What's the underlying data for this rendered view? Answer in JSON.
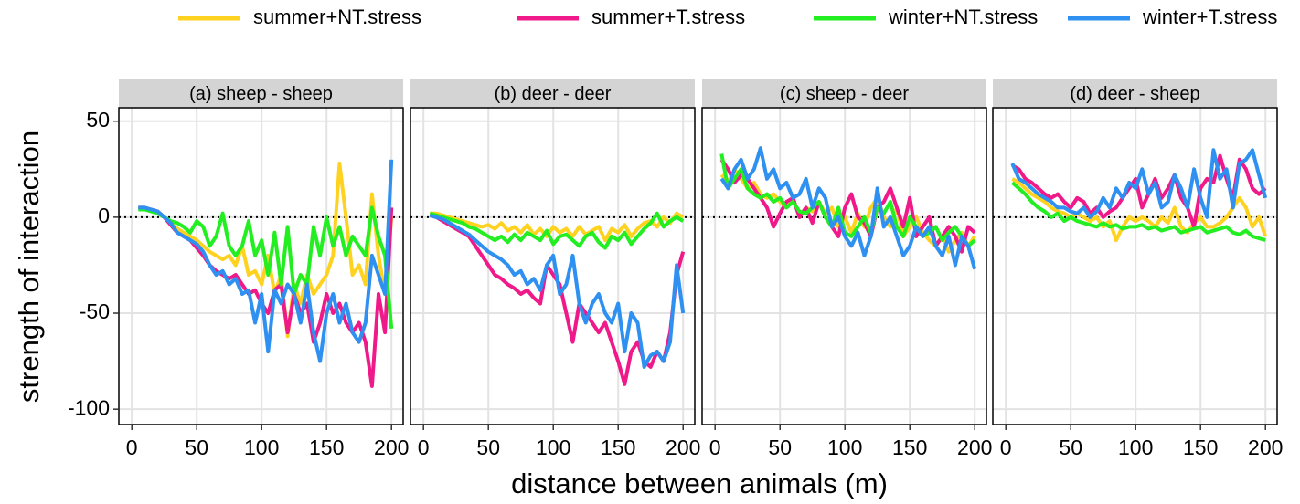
{
  "chart_data": {
    "type": "line",
    "xlabel": "distance between animals (m)",
    "ylabel": "strength of interaction",
    "xlim": [
      -10,
      209
    ],
    "xticks": [
      0,
      50,
      100,
      150,
      200
    ],
    "ylim": [
      -108,
      57
    ],
    "yticks": [
      50,
      0,
      -50,
      -100
    ],
    "grid": true,
    "hline": 0,
    "legend": "top",
    "x": [
      5,
      10,
      15,
      20,
      25,
      30,
      35,
      40,
      45,
      50,
      55,
      60,
      65,
      70,
      75,
      80,
      85,
      90,
      95,
      100,
      105,
      110,
      115,
      120,
      125,
      130,
      135,
      140,
      145,
      150,
      155,
      160,
      165,
      170,
      175,
      180,
      185,
      190,
      195,
      200
    ],
    "series": [
      {
        "name": "summer+NT.stress",
        "color": "#FFD21F"
      },
      {
        "name": "summer+T.stress",
        "color": "#F0198A"
      },
      {
        "name": "winter+NT.stress",
        "color": "#22EE22"
      },
      {
        "name": "winter+T.stress",
        "color": "#2E90F0"
      }
    ],
    "facets": [
      {
        "title": "(a) sheep - sheep",
        "series": [
          {
            "values": [
              5,
              4,
              4,
              2,
              0,
              -3,
              -6,
              -8,
              -10,
              -12,
              -15,
              -18,
              -20,
              -22,
              -20,
              -25,
              -15,
              -30,
              -28,
              -35,
              -20,
              -40,
              -30,
              -62,
              -35,
              -45,
              -30,
              -40,
              -35,
              -30,
              -20,
              28,
              0,
              -30,
              -25,
              -35,
              12,
              -20,
              -40,
              0
            ]
          },
          {
            "values": [
              5,
              5,
              4,
              3,
              0,
              -4,
              -8,
              -10,
              -12,
              -16,
              -20,
              -25,
              -28,
              -30,
              -32,
              -30,
              -35,
              -40,
              -38,
              -45,
              -50,
              -38,
              -35,
              -60,
              -40,
              -50,
              -45,
              -65,
              -55,
              -40,
              -50,
              -45,
              -55,
              -60,
              -55,
              -65,
              -88,
              -40,
              -60,
              5
            ]
          },
          {
            "values": [
              4,
              4,
              3,
              2,
              0,
              -2,
              -3,
              -5,
              -8,
              -2,
              -5,
              -15,
              -10,
              2,
              -15,
              -20,
              -15,
              -2,
              -20,
              -12,
              -30,
              -8,
              -35,
              -5,
              -40,
              -30,
              -35,
              -5,
              -20,
              0,
              -15,
              -5,
              -20,
              -10,
              -15,
              -20,
              5,
              -10,
              -20,
              -58
            ]
          },
          {
            "values": [
              5,
              5,
              4,
              3,
              0,
              -3,
              -8,
              -10,
              -12,
              -14,
              -18,
              -25,
              -30,
              -28,
              -35,
              -32,
              -40,
              -38,
              -55,
              -40,
              -70,
              -38,
              -45,
              -35,
              -40,
              -55,
              -35,
              -60,
              -75,
              -50,
              -40,
              -55,
              -45,
              -60,
              -65,
              -55,
              -20,
              -30,
              -40,
              30
            ]
          }
        ]
      },
      {
        "title": "(b) deer - deer",
        "series": [
          {
            "values": [
              2,
              2,
              1,
              0,
              -1,
              -2,
              -3,
              -4,
              -5,
              -4,
              -6,
              -3,
              -7,
              -5,
              -8,
              -4,
              -9,
              -6,
              -10,
              -5,
              -8,
              -6,
              -10,
              -5,
              -9,
              -7,
              -5,
              -12,
              -6,
              -8,
              -4,
              -10,
              -6,
              -3,
              -2,
              -5,
              0,
              -3,
              2,
              0
            ]
          },
          {
            "values": [
              1,
              0,
              -2,
              -4,
              -6,
              -8,
              -10,
              -15,
              -20,
              -25,
              -30,
              -32,
              -35,
              -37,
              -40,
              -38,
              -42,
              -45,
              -25,
              -30,
              -35,
              -50,
              -65,
              -45,
              -50,
              -55,
              -60,
              -55,
              -65,
              -75,
              -87,
              -70,
              -65,
              -75,
              -78,
              -70,
              -75,
              -60,
              -30,
              -18
            ]
          },
          {
            "values": [
              2,
              1,
              0,
              -1,
              -2,
              -3,
              -5,
              -6,
              -8,
              -10,
              -12,
              -10,
              -13,
              -9,
              -12,
              -8,
              -10,
              -12,
              -7,
              -14,
              -10,
              -9,
              -12,
              -15,
              -10,
              -8,
              -13,
              -16,
              -10,
              -12,
              -8,
              -14,
              -10,
              -6,
              -3,
              2,
              -5,
              -2,
              0,
              -2
            ]
          },
          {
            "values": [
              1,
              0,
              -1,
              -3,
              -5,
              -7,
              -9,
              -12,
              -15,
              -18,
              -20,
              -22,
              -25,
              -30,
              -28,
              -35,
              -32,
              -38,
              -25,
              -20,
              -40,
              -35,
              -20,
              -45,
              -55,
              -45,
              -40,
              -50,
              -55,
              -45,
              -70,
              -50,
              -55,
              -78,
              -72,
              -70,
              -75,
              -65,
              -25,
              -50
            ]
          }
        ]
      },
      {
        "title": "(c) sheep - deer",
        "series": [
          {
            "values": [
              22,
              18,
              25,
              20,
              15,
              18,
              12,
              10,
              12,
              8,
              5,
              10,
              0,
              5,
              3,
              8,
              2,
              5,
              -5,
              0,
              -8,
              2,
              -5,
              5,
              10,
              0,
              -5,
              5,
              -10,
              -5,
              0,
              -8,
              -12,
              -15,
              -10,
              -18,
              -12,
              -8,
              -15,
              -10
            ]
          },
          {
            "values": [
              30,
              25,
              18,
              22,
              20,
              15,
              10,
              5,
              -5,
              2,
              8,
              10,
              0,
              5,
              -3,
              8,
              0,
              -5,
              -10,
              5,
              12,
              0,
              -3,
              -10,
              5,
              8,
              15,
              5,
              -5,
              10,
              -10,
              -5,
              0,
              -15,
              -10,
              -5,
              -10,
              -18,
              -5,
              -8
            ]
          },
          {
            "values": [
              33,
              15,
              20,
              25,
              15,
              12,
              10,
              12,
              8,
              10,
              5,
              8,
              3,
              2,
              5,
              8,
              0,
              -5,
              5,
              -8,
              -10,
              -5,
              0,
              -8,
              5,
              2,
              8,
              -5,
              -10,
              0,
              -5,
              -10,
              -8,
              -5,
              -12,
              -8,
              -5,
              -10,
              -15,
              -12
            ]
          },
          {
            "values": [
              20,
              15,
              25,
              30,
              20,
              25,
              36,
              20,
              25,
              15,
              18,
              10,
              12,
              20,
              5,
              15,
              10,
              -5,
              0,
              -10,
              -15,
              -8,
              -20,
              -10,
              15,
              -5,
              0,
              -10,
              -20,
              -15,
              -5,
              -10,
              -5,
              -15,
              -20,
              -10,
              -25,
              -10,
              -15,
              -27
            ]
          }
        ]
      },
      {
        "title": "(d) deer - sheep",
        "series": [
          {
            "values": [
              20,
              18,
              15,
              12,
              10,
              8,
              5,
              3,
              2,
              0,
              2,
              0,
              -2,
              0,
              -5,
              -2,
              -12,
              -5,
              0,
              -2,
              0,
              -2,
              -5,
              0,
              -3,
              5,
              -5,
              -8,
              -3,
              0,
              -5,
              -5,
              -3,
              0,
              5,
              10,
              5,
              -5,
              0,
              -10
            ]
          },
          {
            "values": [
              27,
              25,
              20,
              18,
              15,
              12,
              10,
              12,
              8,
              5,
              10,
              8,
              2,
              5,
              0,
              3,
              5,
              10,
              15,
              20,
              5,
              12,
              20,
              10,
              15,
              22,
              10,
              5,
              -5,
              15,
              20,
              18,
              32,
              20,
              10,
              30,
              25,
              15,
              12,
              15
            ]
          },
          {
            "values": [
              18,
              15,
              12,
              8,
              5,
              3,
              0,
              2,
              -2,
              0,
              -2,
              -3,
              -4,
              -5,
              -3,
              -5,
              -4,
              -6,
              -5,
              -5,
              -4,
              -6,
              -5,
              -7,
              -6,
              -5,
              -8,
              -7,
              -6,
              -5,
              -8,
              -7,
              -6,
              -5,
              -8,
              -9,
              -7,
              -10,
              -11,
              -12
            ]
          },
          {
            "values": [
              28,
              20,
              18,
              15,
              12,
              10,
              8,
              5,
              5,
              3,
              2,
              5,
              0,
              3,
              10,
              5,
              15,
              10,
              18,
              15,
              25,
              12,
              18,
              5,
              8,
              22,
              15,
              5,
              25,
              10,
              0,
              35,
              20,
              25,
              5,
              28,
              30,
              35,
              22,
              10
            ]
          }
        ]
      }
    ]
  }
}
